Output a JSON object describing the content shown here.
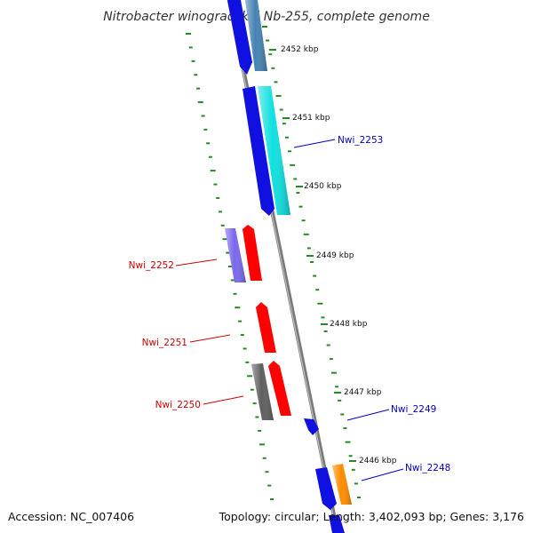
{
  "title": "Nitrobacter winogradskyi Nb-255, complete genome",
  "footer": {
    "accession": "Accession: NC_007406",
    "topology": "Topology: circular; Length: 3,402,093 bp; Genes: 3,176"
  },
  "ticks": [
    {
      "label": "2452 kbp"
    },
    {
      "label": "2451 kbp"
    },
    {
      "label": "2450 kbp"
    },
    {
      "label": "2449 kbp"
    },
    {
      "label": "2448 kbp"
    },
    {
      "label": "2447 kbp"
    },
    {
      "label": "2446 kbp"
    }
  ],
  "genes": [
    {
      "id": "g1",
      "color": "#1010e0",
      "strand": "outer",
      "track": 1
    },
    {
      "id": "g2",
      "color": "#4682b4",
      "strand": "outer",
      "track": 2
    },
    {
      "id": "g3",
      "color": "#1010e0",
      "strand": "outer",
      "track": 1
    },
    {
      "id": "g4",
      "color": "#10e0e0",
      "strand": "outer",
      "track": 2,
      "label": "Nwi_2253"
    },
    {
      "id": "g5",
      "color": "#7b68ee",
      "strand": "inner",
      "track": 2,
      "label": "Nwi_2252"
    },
    {
      "id": "g6",
      "color": "#ff0000",
      "strand": "inner",
      "track": 1
    },
    {
      "id": "g7",
      "color": "#ff0000",
      "strand": "inner",
      "track": 1,
      "label": "Nwi_2251"
    },
    {
      "id": "g8",
      "color": "#606060",
      "strand": "inner",
      "track": 2,
      "label": "Nwi_2250"
    },
    {
      "id": "g9",
      "color": "#ff0000",
      "strand": "inner",
      "track": 1
    },
    {
      "id": "g10",
      "color": "#1010e0",
      "strand": "outer",
      "track": 1,
      "label": "Nwi_2249"
    },
    {
      "id": "g11",
      "color": "#1010e0",
      "strand": "outer",
      "track": 1
    },
    {
      "id": "g12",
      "color": "#ff8c00",
      "strand": "outer",
      "track": 2,
      "label": "Nwi_2248"
    }
  ],
  "colors": {
    "backbone": "#8c8c8c",
    "tick": "#228b22",
    "forward_label": "#0000cc",
    "reverse_label": "#cc0000"
  }
}
